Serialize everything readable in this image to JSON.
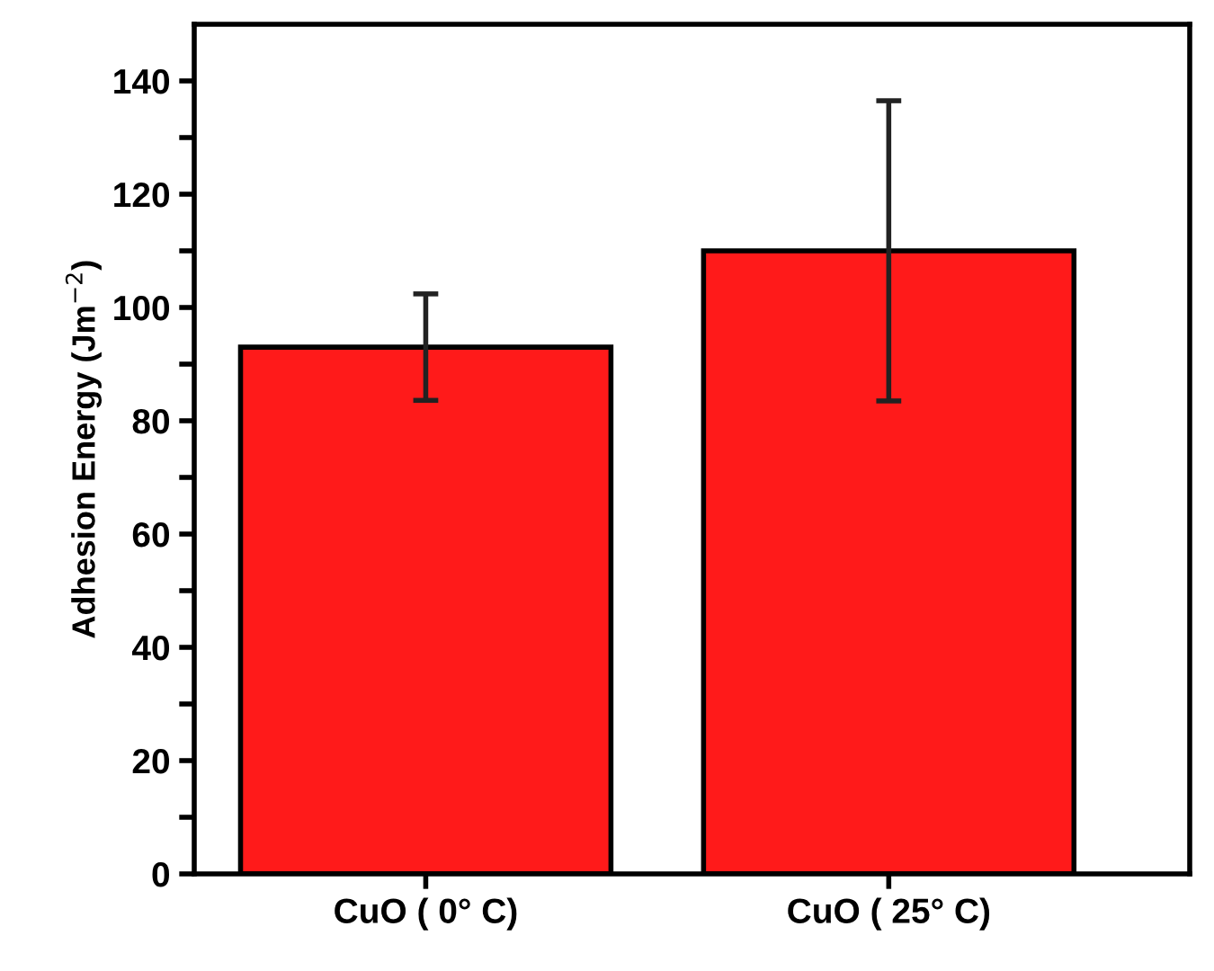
{
  "chart_data": {
    "type": "bar",
    "ylabel": "Adhesion Energy (Jm$^{−2}$)",
    "categories": [
      "CuO ( 0° C)",
      "CuO ( 25° C)"
    ],
    "values": [
      93,
      110
    ],
    "errors": [
      9.4,
      26.5
    ],
    "color": "#ff1a1a",
    "ylim": [
      0,
      150
    ],
    "yticks": [
      0,
      {
        "value": 10,
        "label": null
      },
      20,
      {
        "value": 30,
        "label": null
      },
      40,
      {
        "value": 50,
        "label": null
      },
      60,
      {
        "value": 70,
        "label": null
      },
      80,
      {
        "value": 90,
        "label": null
      },
      100,
      {
        "value": 110,
        "label": null
      },
      120,
      {
        "value": 130,
        "label": null
      },
      140
    ],
    "grid": false,
    "legend": false
  }
}
